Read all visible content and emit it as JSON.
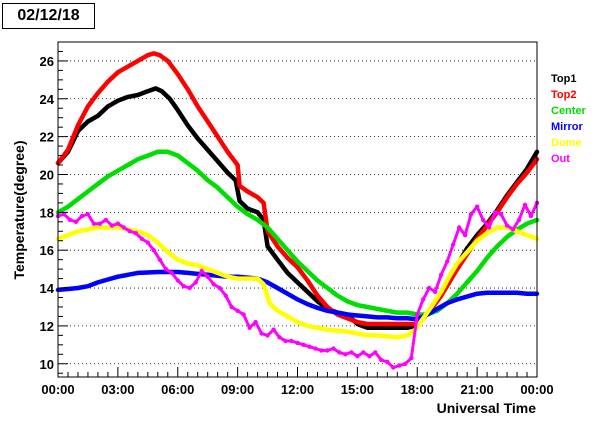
{
  "chart_data": {
    "type": "line",
    "title": "02/12/18",
    "xlabel": "Universal Time",
    "ylabel": "Temperature(degree)",
    "xlim": [
      0,
      24
    ],
    "ylim": [
      9.3,
      27.0
    ],
    "grid": "horizontal dotted",
    "legend_position": "right",
    "xticks": [
      {
        "x": 0,
        "label": "00:00"
      },
      {
        "x": 3,
        "label": "03:00"
      },
      {
        "x": 6,
        "label": "06:00"
      },
      {
        "x": 9,
        "label": "09:00"
      },
      {
        "x": 12,
        "label": "12:00"
      },
      {
        "x": 15,
        "label": "15:00"
      },
      {
        "x": 18,
        "label": "18:00"
      },
      {
        "x": 21,
        "label": "21:00"
      },
      {
        "x": 24,
        "label": "00:00"
      }
    ],
    "yticks": [
      {
        "y": 10,
        "label": "10"
      },
      {
        "y": 12,
        "label": "12"
      },
      {
        "y": 14,
        "label": "14"
      },
      {
        "y": 16,
        "label": "16"
      },
      {
        "y": 18,
        "label": "18"
      },
      {
        "y": 20,
        "label": "20"
      },
      {
        "y": 22,
        "label": "22"
      },
      {
        "y": 24,
        "label": "24"
      },
      {
        "y": 26,
        "label": "26"
      }
    ],
    "series": [
      {
        "name": "Top1",
        "color": "#000000",
        "x": [
          0,
          0.5,
          1,
          1.5,
          2,
          2.5,
          3,
          3.5,
          4,
          4.5,
          4.9,
          5.2,
          5.6,
          6,
          6.5,
          7,
          7.5,
          8,
          8.5,
          8.9,
          9.1,
          9.5,
          10,
          10.3,
          10.5,
          11,
          11.5,
          12,
          12.5,
          13,
          13.5,
          14,
          14.5,
          15,
          15.5,
          16,
          16.5,
          17,
          17.5,
          17.9,
          18.3,
          18.7,
          19.2,
          19.6,
          20,
          20.5,
          21,
          21.5,
          22,
          22.5,
          23,
          23.5,
          24
        ],
        "y": [
          20.6,
          21.2,
          22.3,
          22.8,
          23.1,
          23.6,
          23.9,
          24.1,
          24.2,
          24.4,
          24.55,
          24.4,
          24.0,
          23.4,
          22.6,
          21.9,
          21.3,
          20.7,
          20.1,
          19.7,
          18.6,
          18.2,
          18.0,
          17.6,
          16.2,
          15.5,
          14.8,
          14.3,
          13.8,
          13.3,
          12.9,
          12.7,
          12.6,
          12.1,
          11.9,
          11.9,
          11.9,
          11.9,
          11.9,
          12.0,
          12.4,
          12.9,
          13.6,
          14.4,
          15.2,
          16.1,
          16.8,
          17.4,
          18.1,
          18.9,
          19.6,
          20.3,
          21.2
        ]
      },
      {
        "name": "Top2",
        "color": "#ff0000",
        "x": [
          0,
          0.5,
          1,
          1.5,
          2,
          2.5,
          3,
          3.5,
          4,
          4.5,
          4.8,
          5.1,
          5.5,
          6,
          6.5,
          7,
          7.5,
          8,
          8.5,
          9,
          9.1,
          9.5,
          10,
          10.3,
          10.5,
          11,
          11.5,
          12,
          12.5,
          13,
          13.5,
          14,
          14.5,
          15,
          15.5,
          16,
          16.5,
          17,
          17.5,
          17.9,
          18.3,
          18.7,
          19.2,
          19.6,
          20,
          20.5,
          21,
          21.5,
          22,
          22.5,
          23,
          23.5,
          24
        ],
        "y": [
          20.6,
          21.3,
          22.6,
          23.6,
          24.3,
          24.9,
          25.4,
          25.7,
          26.0,
          26.3,
          26.4,
          26.3,
          26.0,
          25.3,
          24.5,
          23.6,
          22.8,
          22.0,
          21.2,
          20.5,
          19.4,
          19.1,
          18.8,
          18.5,
          17.0,
          16.2,
          15.6,
          15.1,
          14.4,
          13.6,
          13.0,
          12.6,
          12.4,
          12.2,
          12.1,
          12.1,
          12.1,
          12.1,
          12.1,
          12.1,
          12.4,
          12.9,
          13.6,
          14.3,
          15.0,
          15.8,
          16.6,
          17.3,
          18.0,
          18.8,
          19.5,
          20.1,
          20.8
        ]
      },
      {
        "name": "Center",
        "color": "#00dd00",
        "x": [
          0,
          0.5,
          1,
          1.5,
          2,
          2.5,
          3,
          3.5,
          4,
          4.5,
          5,
          5.5,
          6,
          6.5,
          7,
          7.5,
          8,
          8.5,
          9,
          9.5,
          10,
          10.5,
          11,
          11.5,
          12,
          12.5,
          13,
          13.5,
          14,
          14.5,
          15,
          15.5,
          16,
          16.5,
          17,
          17.5,
          18,
          18.5,
          19,
          19.5,
          20,
          20.5,
          21,
          21.5,
          22,
          22.5,
          23,
          23.5,
          24
        ],
        "y": [
          18.0,
          18.3,
          18.7,
          19.1,
          19.5,
          19.9,
          20.2,
          20.5,
          20.8,
          21.0,
          21.2,
          21.2,
          21.0,
          20.6,
          20.2,
          19.7,
          19.3,
          18.8,
          18.3,
          17.9,
          17.6,
          17.2,
          16.6,
          16.0,
          15.4,
          14.9,
          14.4,
          14.0,
          13.6,
          13.3,
          13.1,
          13.0,
          12.9,
          12.8,
          12.7,
          12.7,
          12.6,
          12.6,
          12.8,
          13.2,
          13.7,
          14.3,
          14.9,
          15.6,
          16.2,
          16.7,
          17.1,
          17.4,
          17.6
        ]
      },
      {
        "name": "Mirror",
        "color": "#0000ff",
        "x": [
          0,
          0.5,
          1,
          1.5,
          2,
          2.5,
          3,
          3.5,
          4,
          4.5,
          5,
          5.5,
          6,
          6.5,
          7,
          7.5,
          8,
          8.5,
          9,
          9.5,
          10,
          10.5,
          11,
          11.5,
          12,
          12.5,
          13,
          13.5,
          14,
          14.5,
          15,
          15.5,
          16,
          16.5,
          17,
          17.5,
          18,
          18.5,
          19,
          19.5,
          20,
          20.5,
          21,
          21.5,
          22,
          22.5,
          23,
          23.5,
          24
        ],
        "y": [
          13.9,
          13.95,
          14.0,
          14.1,
          14.3,
          14.45,
          14.6,
          14.7,
          14.8,
          14.82,
          14.85,
          14.85,
          14.85,
          14.8,
          14.75,
          14.7,
          14.65,
          14.6,
          14.6,
          14.55,
          14.5,
          14.3,
          14.0,
          13.7,
          13.4,
          13.15,
          12.95,
          12.8,
          12.7,
          12.6,
          12.55,
          12.5,
          12.45,
          12.45,
          12.4,
          12.4,
          12.35,
          12.6,
          12.9,
          13.2,
          13.4,
          13.55,
          13.7,
          13.75,
          13.75,
          13.75,
          13.75,
          13.7,
          13.7
        ]
      },
      {
        "name": "Dome",
        "color": "#ffff00",
        "x": [
          0,
          0.5,
          1,
          1.5,
          2,
          2.5,
          3,
          3.5,
          4,
          4.5,
          5,
          5.5,
          6,
          6.5,
          7,
          7.5,
          8,
          8.5,
          9,
          9.5,
          10,
          10.3,
          10.6,
          11,
          11.5,
          12,
          12.5,
          13,
          13.5,
          14,
          14.5,
          15,
          15.5,
          16,
          16.5,
          17,
          17.5,
          17.9,
          18.3,
          18.7,
          19.2,
          19.6,
          20,
          20.5,
          21,
          21.5,
          22,
          22.5,
          23,
          23.5,
          24
        ],
        "y": [
          16.6,
          16.8,
          17.0,
          17.1,
          17.2,
          17.2,
          17.2,
          17.1,
          17.0,
          16.8,
          16.4,
          15.9,
          15.5,
          15.3,
          15.2,
          15.0,
          14.8,
          14.6,
          14.5,
          14.5,
          14.5,
          14.2,
          13.2,
          12.8,
          12.5,
          12.2,
          12.0,
          11.9,
          11.8,
          11.75,
          11.7,
          11.6,
          11.5,
          11.5,
          11.45,
          11.4,
          11.5,
          11.8,
          12.4,
          13.0,
          13.8,
          14.6,
          15.3,
          15.9,
          16.5,
          16.9,
          17.2,
          17.2,
          17.0,
          16.8,
          16.6
        ]
      },
      {
        "name": "Out",
        "color": "#ff00ff",
        "x": [
          0,
          0.3,
          0.6,
          0.9,
          1.2,
          1.5,
          1.8,
          2.1,
          2.4,
          2.7,
          3.0,
          3.3,
          3.6,
          3.9,
          4.2,
          4.5,
          4.8,
          5.1,
          5.4,
          5.7,
          6.0,
          6.3,
          6.6,
          6.9,
          7.2,
          7.5,
          7.8,
          8.1,
          8.4,
          8.7,
          9.0,
          9.3,
          9.6,
          9.9,
          10.2,
          10.5,
          10.8,
          11.1,
          11.4,
          11.7,
          12.0,
          12.3,
          12.6,
          12.9,
          13.2,
          13.5,
          13.8,
          14.1,
          14.4,
          14.7,
          15.0,
          15.3,
          15.6,
          15.9,
          16.2,
          16.5,
          16.8,
          17.1,
          17.4,
          17.7,
          18.0,
          18.3,
          18.6,
          18.9,
          19.2,
          19.5,
          19.8,
          20.1,
          20.4,
          20.7,
          21.0,
          21.3,
          21.6,
          21.9,
          22.2,
          22.5,
          22.8,
          23.1,
          23.4,
          23.7,
          24.0
        ],
        "y": [
          17.8,
          17.9,
          17.6,
          17.5,
          17.8,
          17.9,
          17.4,
          17.4,
          17.6,
          17.3,
          17.4,
          17.2,
          17.0,
          16.9,
          16.6,
          16.4,
          16.0,
          15.5,
          15.0,
          14.8,
          14.4,
          14.1,
          14.0,
          14.3,
          14.9,
          14.6,
          14.2,
          14.0,
          13.6,
          13.0,
          12.8,
          12.6,
          11.9,
          12.2,
          11.6,
          11.5,
          11.8,
          11.4,
          11.2,
          11.2,
          11.1,
          11.0,
          10.9,
          10.8,
          10.7,
          10.7,
          10.8,
          10.6,
          10.5,
          10.6,
          10.4,
          10.6,
          10.4,
          10.6,
          10.2,
          10.1,
          9.8,
          9.9,
          10.0,
          10.3,
          12.6,
          13.4,
          14.0,
          13.8,
          14.7,
          15.4,
          16.3,
          17.2,
          16.8,
          17.9,
          18.3,
          17.6,
          17.2,
          18.0,
          17.9,
          17.3,
          17.1,
          17.6,
          18.4,
          17.8,
          18.5
        ]
      }
    ]
  }
}
